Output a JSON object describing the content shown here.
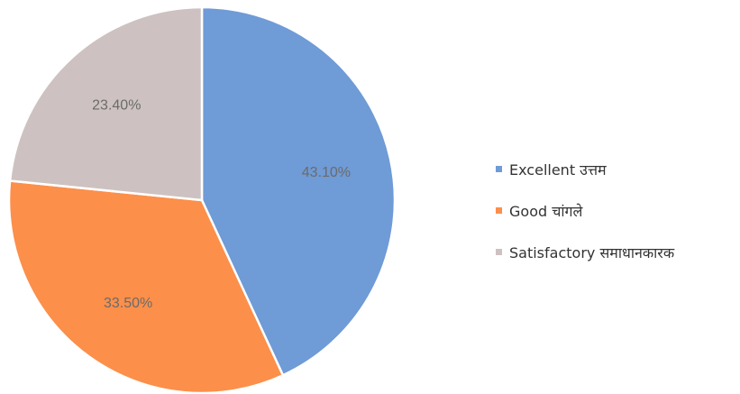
{
  "chart_data": {
    "type": "pie",
    "title": "",
    "categories": [
      "Excellent उत्तम",
      "Good चांगले",
      "Satisfactory समाधानकारक"
    ],
    "values": [
      43.1,
      33.5,
      23.4
    ],
    "data_labels": [
      "43.10%",
      "33.50%",
      "23.40%"
    ],
    "colors": [
      "#6f9bd6",
      "#fc8f4a",
      "#cdc2c1"
    ],
    "start_angle_deg": 0,
    "direction": "clockwise",
    "legend_position": "right"
  },
  "legend": {
    "items": [
      {
        "label": "Excellent उत्तम",
        "color": "#6f9bd6"
      },
      {
        "label": "Good चांगले",
        "color": "#fc8f4a"
      },
      {
        "label": "Satisfactory समाधानकारक",
        "color": "#cdc2c1"
      }
    ]
  }
}
